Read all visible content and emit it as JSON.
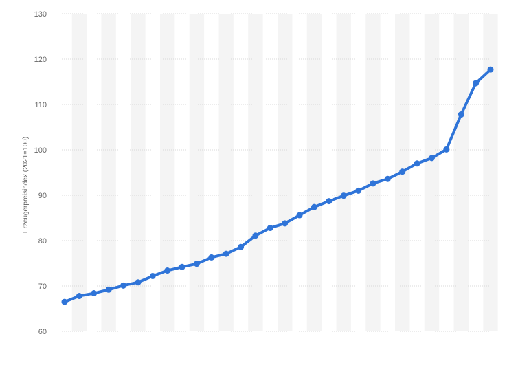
{
  "chart_data": {
    "type": "line",
    "title": "",
    "xlabel": "",
    "ylabel": "Erzeugerpreisindex (2021=100)",
    "ylim": [
      60,
      130
    ],
    "yticks": [
      60,
      70,
      80,
      90,
      100,
      110,
      120,
      130
    ],
    "grid": true,
    "series": [
      {
        "values": [
          66.5,
          67.8,
          68.4,
          69.2,
          70.1,
          70.8,
          72.2,
          73.4,
          74.2,
          74.9,
          76.3,
          77.1,
          78.6,
          81.1,
          82.8,
          83.8,
          85.6,
          87.4,
          88.7,
          89.9,
          91.0,
          92.6,
          93.6,
          95.2,
          97.0,
          98.2,
          100.1,
          107.8,
          114.7,
          117.7
        ]
      }
    ]
  },
  "colors": {
    "line": "#2f74d8",
    "band": "#f4f4f4",
    "grid": "#d9d9d9"
  }
}
